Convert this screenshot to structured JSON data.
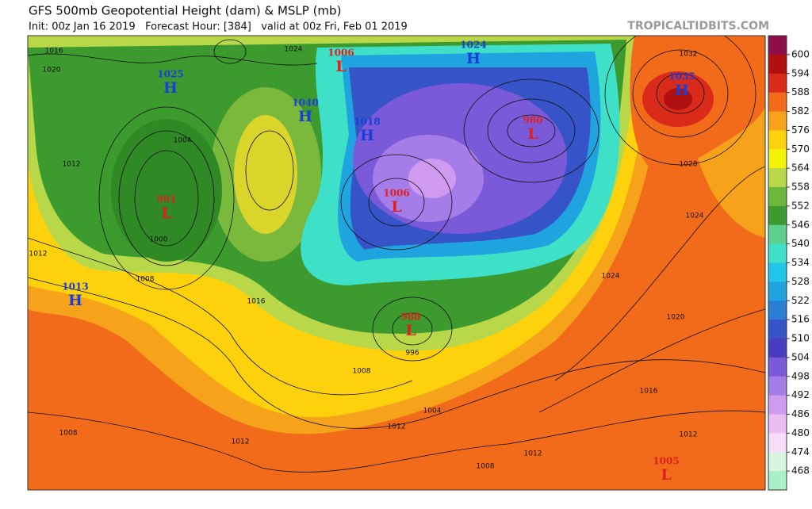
{
  "header": {
    "title": "GFS 500mb Geopotential Height (dam) & MSLP (mb)",
    "subtitle": "Init: 00z Jan 16 2019   Forecast Hour: [384]   valid at 00z Fri, Feb 01 2019",
    "source": "TROPICALTIDBITS.COM"
  },
  "colorbar": {
    "labels": [
      600,
      594,
      588,
      582,
      576,
      570,
      564,
      558,
      552,
      546,
      540,
      534,
      528,
      522,
      516,
      510,
      504,
      498,
      492,
      486,
      480,
      474,
      468
    ],
    "colors": [
      "#8c0f4c",
      "#b01010",
      "#d92a1a",
      "#f26b1a",
      "#f7a21b",
      "#fdd20d",
      "#f5f20a",
      "#b8d84a",
      "#6cb83a",
      "#3d9a2e",
      "#5ecf8c",
      "#3fe0c8",
      "#22c6e8",
      "#1fa4e0",
      "#2a7ed4",
      "#3654c8",
      "#4a3cbf",
      "#7a5ad8",
      "#a57de8",
      "#cf9af0",
      "#eebcf5",
      "#f7def8",
      "#d8f5e0",
      "#a8f0c8"
    ]
  },
  "centers": [
    {
      "type": "H",
      "value": "1025"
    },
    {
      "type": "L",
      "value": "1006"
    },
    {
      "type": "H",
      "value": "1024"
    },
    {
      "type": "H",
      "value": "1040"
    },
    {
      "type": "H",
      "value": "1018"
    },
    {
      "type": "L",
      "value": "980"
    },
    {
      "type": "H",
      "value": "1035"
    },
    {
      "type": "L",
      "value": "991"
    },
    {
      "type": "L",
      "value": "1006"
    },
    {
      "type": "H",
      "value": "1013"
    },
    {
      "type": "L",
      "value": "988"
    },
    {
      "type": "L",
      "value": "1005"
    }
  ],
  "isobar_labels": [
    "1016",
    "1020",
    "1012",
    "1004",
    "1000",
    "1008",
    "1012",
    "1016",
    "1008",
    "1012",
    "1024",
    "1028",
    "1024",
    "1020",
    "1016",
    "1012",
    "1004",
    "996",
    "1008",
    "1008",
    "1012",
    "1012",
    "1032",
    "1024"
  ]
}
